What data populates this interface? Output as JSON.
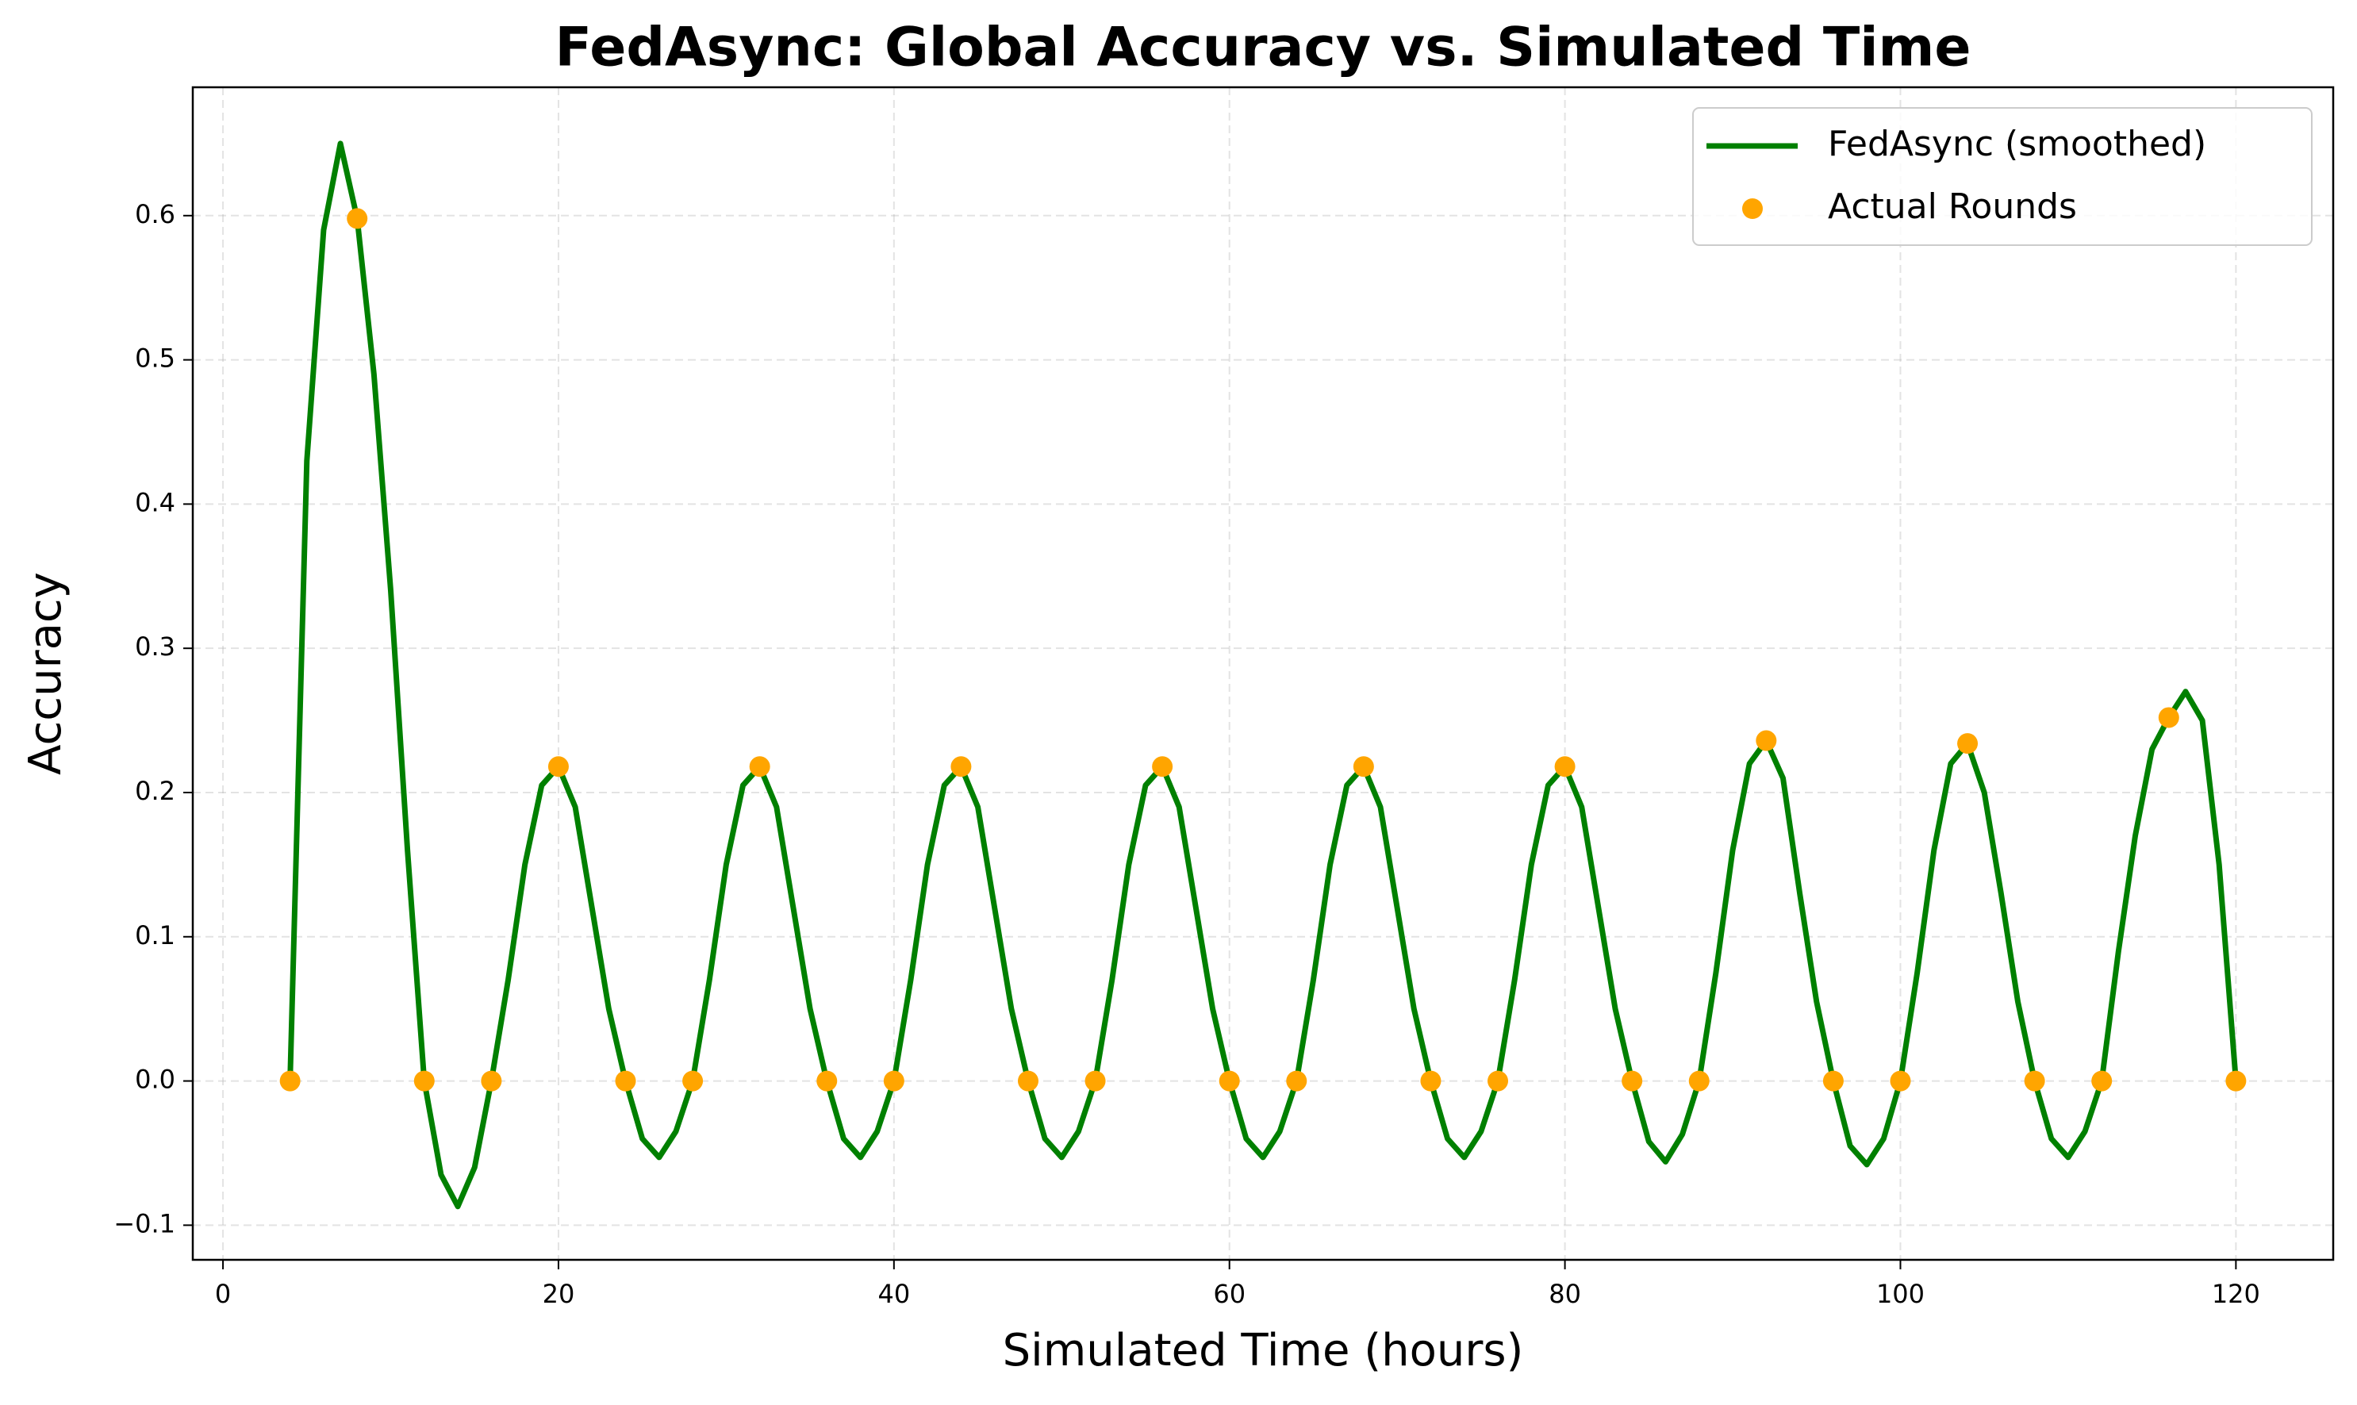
{
  "chart_data": {
    "type": "line",
    "title": "FedAsync: Global Accuracy vs. Simulated Time",
    "xlabel": "Simulated Time (hours)",
    "ylabel": "Accuracy",
    "xlim": [
      -1.8,
      125.8
    ],
    "ylim": [
      -0.124,
      0.689
    ],
    "xticks": [
      0,
      20,
      40,
      60,
      80,
      100,
      120
    ],
    "yticks": [
      {
        "value": -0.1,
        "label": "−0.1"
      },
      {
        "value": 0,
        "label": "0.0"
      },
      0.1,
      0.2,
      0.3,
      0.4,
      0.5,
      0.6
    ],
    "grid": true,
    "legend": "upper right",
    "series": [
      {
        "name": "FedAsync (smoothed)",
        "type": "line",
        "color": "#008000",
        "x": [
          4,
          5,
          6,
          7,
          8,
          9,
          10,
          11,
          12,
          13,
          14,
          15,
          16,
          17,
          18,
          19,
          20,
          21,
          22,
          23,
          24,
          25,
          26,
          27,
          28,
          29,
          30,
          31,
          32,
          33,
          34,
          35,
          36,
          37,
          38,
          39,
          40,
          41,
          42,
          43,
          44,
          45,
          46,
          47,
          48,
          49,
          50,
          51,
          52,
          53,
          54,
          55,
          56,
          57,
          58,
          59,
          60,
          61,
          62,
          63,
          64,
          65,
          66,
          67,
          68,
          69,
          70,
          71,
          72,
          73,
          74,
          75,
          76,
          77,
          78,
          79,
          80,
          81,
          82,
          83,
          84,
          85,
          86,
          87,
          88,
          89,
          90,
          91,
          92,
          93,
          94,
          95,
          96,
          97,
          98,
          99,
          100,
          101,
          102,
          103,
          104,
          105,
          106,
          107,
          108,
          109,
          110,
          111,
          112,
          113,
          114,
          115,
          116,
          117,
          118,
          119,
          120
        ],
        "values": [
          0,
          0.43,
          0.59,
          0.65,
          0.598,
          0.49,
          0.34,
          0.16,
          0,
          -0.065,
          -0.087,
          -0.06,
          0,
          0.07,
          0.15,
          0.205,
          0.218,
          0.19,
          0.12,
          0.05,
          0,
          -0.04,
          -0.053,
          -0.035,
          0,
          0.07,
          0.15,
          0.205,
          0.218,
          0.19,
          0.12,
          0.05,
          0,
          -0.04,
          -0.053,
          -0.035,
          0,
          0.07,
          0.15,
          0.205,
          0.218,
          0.19,
          0.12,
          0.05,
          0,
          -0.04,
          -0.053,
          -0.035,
          0,
          0.07,
          0.15,
          0.205,
          0.218,
          0.19,
          0.12,
          0.05,
          0,
          -0.04,
          -0.053,
          -0.035,
          0,
          0.07,
          0.15,
          0.205,
          0.218,
          0.19,
          0.12,
          0.05,
          0,
          -0.04,
          -0.053,
          -0.035,
          0,
          0.07,
          0.15,
          0.205,
          0.218,
          0.19,
          0.12,
          0.05,
          0,
          -0.042,
          -0.056,
          -0.037,
          0,
          0.075,
          0.16,
          0.22,
          0.236,
          0.21,
          0.13,
          0.055,
          0,
          -0.045,
          -0.058,
          -0.04,
          0,
          0.075,
          0.16,
          0.22,
          0.234,
          0.2,
          0.13,
          0.055,
          0,
          -0.04,
          -0.053,
          -0.035,
          0,
          0.09,
          0.17,
          0.23,
          0.252,
          0.27,
          0.25,
          0.15,
          0
        ]
      },
      {
        "name": "Actual Rounds",
        "type": "scatter",
        "color": "#ffa500",
        "x": [
          4,
          8,
          12,
          16,
          20,
          24,
          28,
          32,
          36,
          40,
          44,
          48,
          52,
          56,
          60,
          64,
          68,
          72,
          76,
          80,
          84,
          88,
          92,
          96,
          100,
          104,
          108,
          112,
          116,
          120
        ],
        "values": [
          0,
          0.598,
          0,
          0,
          0.218,
          0,
          0,
          0.218,
          0,
          0,
          0.218,
          0,
          0,
          0.218,
          0,
          0,
          0.218,
          0,
          0,
          0.218,
          0,
          0,
          0.236,
          0,
          0,
          0.234,
          0,
          0,
          0.252,
          0
        ]
      }
    ]
  }
}
